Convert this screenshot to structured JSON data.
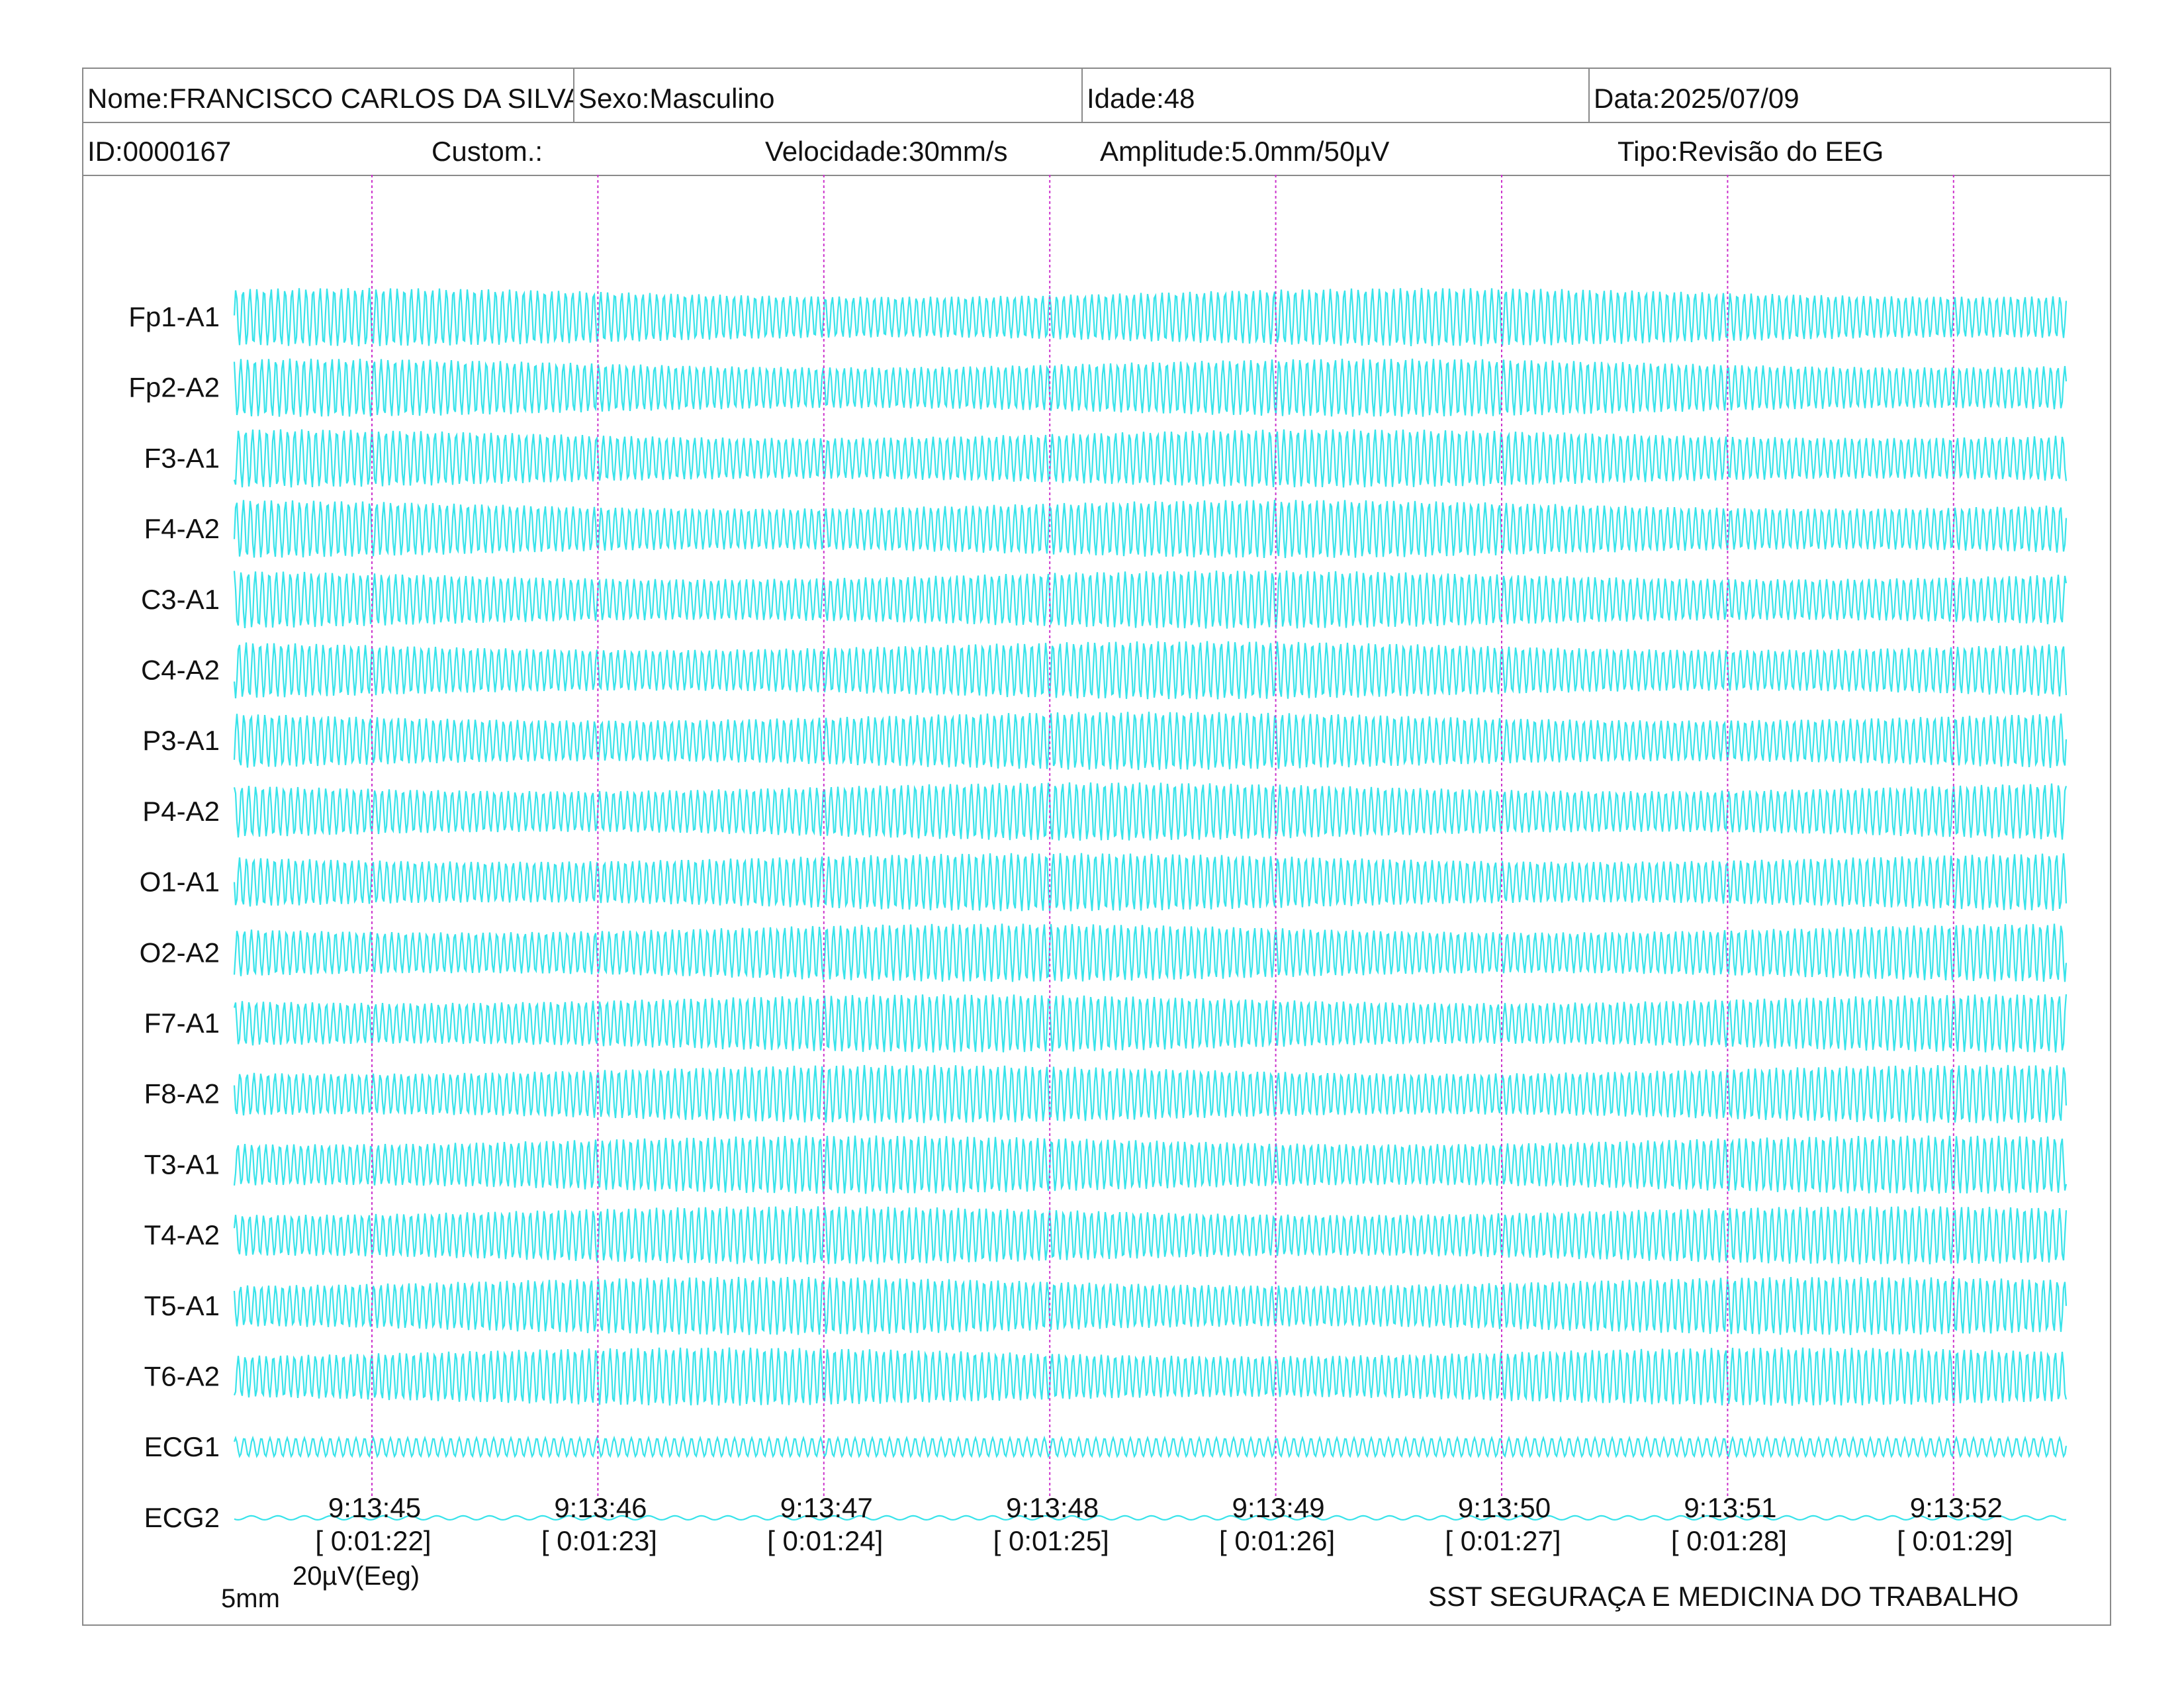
{
  "header": {
    "nome": "Nome:FRANCISCO CARLOS DA SILVA",
    "sexo": "Sexo:Masculino",
    "idade": "Idade:48",
    "data": "Data:2025/07/09",
    "id": "ID:0000167",
    "custom": "Custom.:",
    "velocidade": "Velocidade:30mm/s",
    "amplitude": "Amplitude:5.0mm/50µV",
    "tipo": "Tipo:Revisão do EEG"
  },
  "channels": [
    "Fp1-A1",
    "Fp2-A2",
    "F3-A1",
    "F4-A2",
    "C3-A1",
    "C4-A2",
    "P3-A1",
    "P4-A2",
    "O1-A1",
    "O2-A2",
    "F7-A1",
    "F8-A2",
    "T3-A1",
    "T4-A2",
    "T5-A1",
    "T6-A2",
    "ECG1",
    "ECG2"
  ],
  "time_marks": [
    {
      "clock": "9:13:45",
      "elapsed": "[ 0:01:22]"
    },
    {
      "clock": "9:13:46",
      "elapsed": "[ 0:01:23]"
    },
    {
      "clock": "9:13:47",
      "elapsed": "[ 0:01:24]"
    },
    {
      "clock": "9:13:48",
      "elapsed": "[ 0:01:25]"
    },
    {
      "clock": "9:13:49",
      "elapsed": "[ 0:01:26]"
    },
    {
      "clock": "9:13:50",
      "elapsed": "[ 0:01:27]"
    },
    {
      "clock": "9:13:51",
      "elapsed": "[ 0:01:28]"
    },
    {
      "clock": "9:13:52",
      "elapsed": "[ 0:01:29]"
    }
  ],
  "scale": {
    "time": "5mm",
    "amplitude": "20µV(Eeg)"
  },
  "footer": {
    "organization": "SST SEGURAÇA E MEDICINA DO TRABALHO"
  },
  "colors": {
    "trace": "#22e0e8",
    "time_marker": "#cc33cc",
    "border": "#8a8a8a"
  }
}
